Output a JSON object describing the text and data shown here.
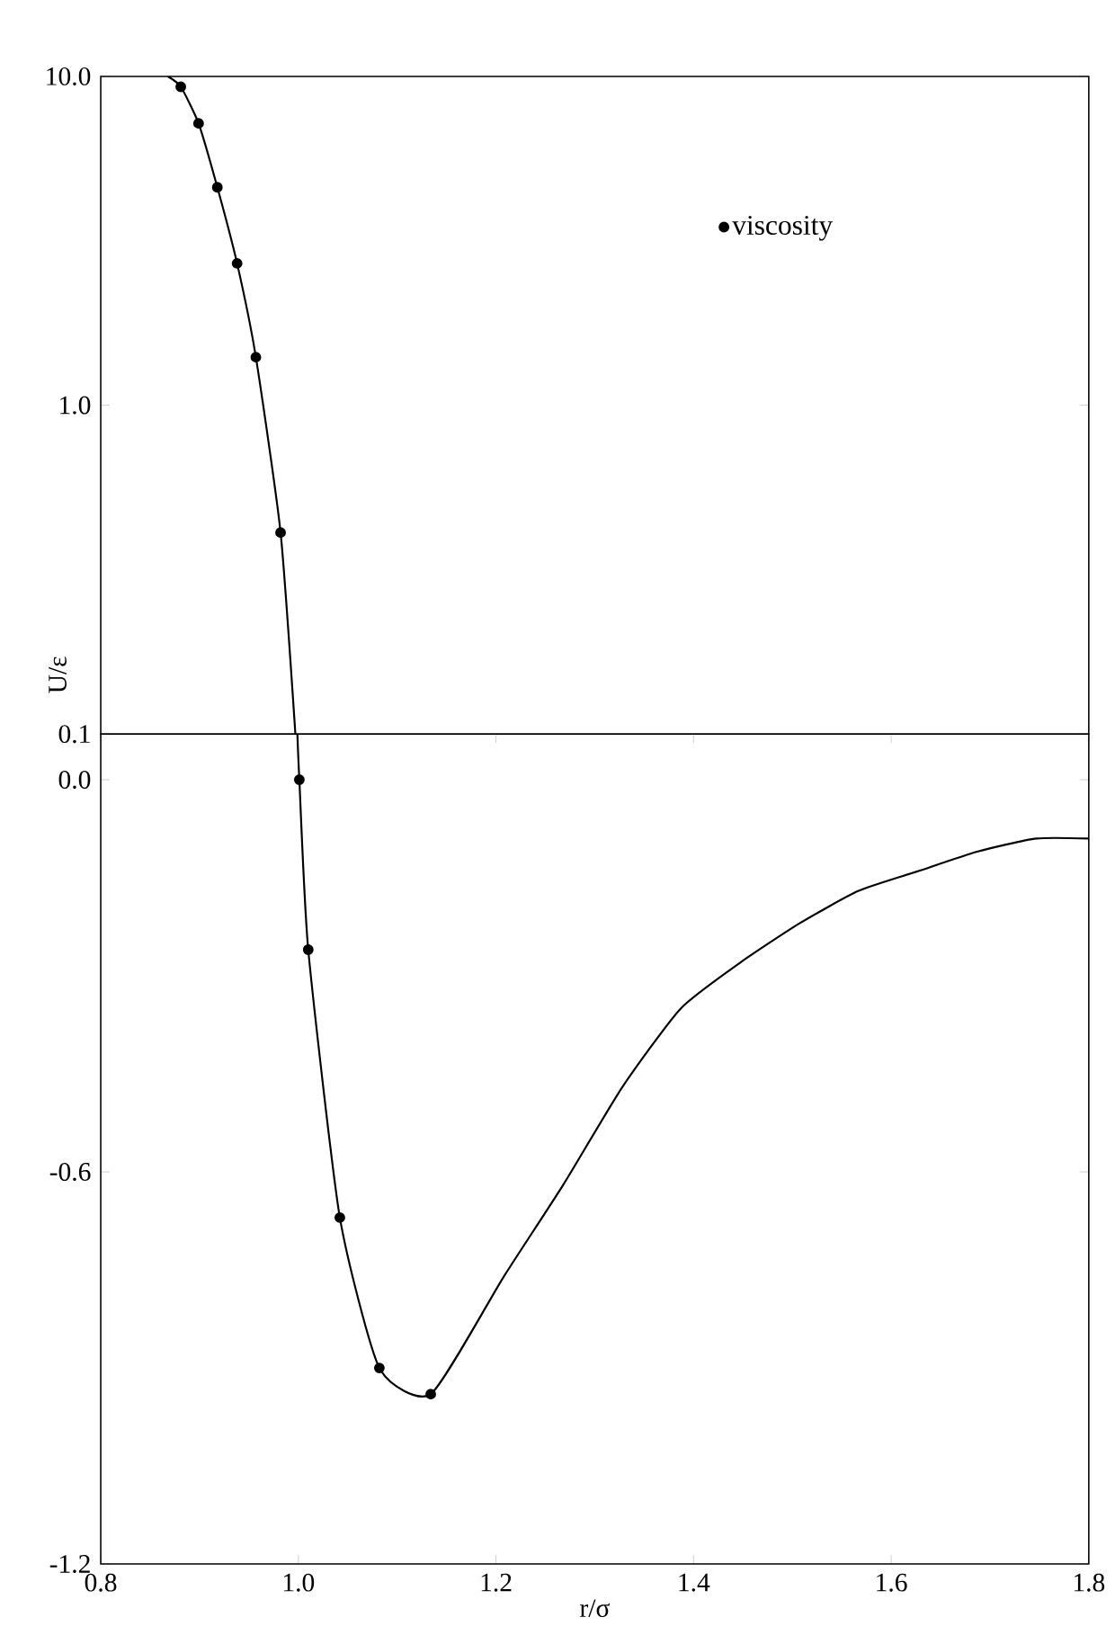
{
  "chart_data": [
    {
      "type": "line",
      "log": "y",
      "xlim": [
        0.8,
        1.8
      ],
      "ylim": [
        0.1,
        10
      ],
      "yticks": [
        {
          "value": 0.1,
          "label": "0.1"
        },
        {
          "value": 1,
          "label": "1.0"
        },
        {
          "value": 10,
          "label": "10.0"
        }
      ],
      "tick_labels": "y",
      "ylabel": "U/ε",
      "legend": "top right",
      "series": [
        {
          "color": "#000000",
          "marker": "none",
          "x": [
            0.868,
            0.881,
            0.899,
            0.918,
            0.938,
            0.957,
            0.982,
            0.997
          ],
          "values": [
            10,
            9.3,
            7.2,
            4.6,
            2.7,
            1.4,
            0.41,
            0.1
          ]
        },
        {
          "type": "scatter",
          "name": "viscosity",
          "color": "#000000",
          "marker": "circle",
          "x": [
            0.881,
            0.899,
            0.918,
            0.938,
            0.957,
            0.982
          ],
          "values": [
            9.3,
            7.2,
            4.6,
            2.7,
            1.4,
            0.41
          ]
        }
      ]
    },
    {
      "type": "line",
      "xlim": [
        0.8,
        1.8
      ],
      "xticks": [
        {
          "value": 0.8,
          "label": "0.8"
        },
        {
          "value": 1.0,
          "label": "1.0"
        },
        {
          "value": 1.2,
          "label": "1.2"
        },
        {
          "value": 1.4,
          "label": "1.4"
        },
        {
          "value": 1.6,
          "label": "1.6"
        },
        {
          "value": 1.8,
          "label": "1.8"
        }
      ],
      "ylim": [
        -1.2,
        0.07
      ],
      "yticks": [
        {
          "value": -1.2,
          "label": "-1.2"
        },
        {
          "value": -0.6,
          "label": "-0.6"
        },
        {
          "value": 0,
          "label": "0.0"
        }
      ],
      "xlabel": "r/σ",
      "series": [
        {
          "color": "#000000",
          "marker": "none",
          "x": [
            0.999,
            1.001,
            1.01,
            1.042,
            1.082,
            1.134,
            1.208,
            1.268,
            1.328,
            1.387,
            1.447,
            1.507,
            1.567,
            1.627,
            1.687,
            1.747,
            1.8
          ],
          "values": [
            0.07,
            0,
            -0.26,
            -0.67,
            -0.9,
            -0.94,
            -0.76,
            -0.62,
            -0.47,
            -0.35,
            -0.28,
            -0.22,
            -0.17,
            -0.14,
            -0.11,
            -0.09,
            -0.09
          ]
        },
        {
          "type": "scatter",
          "color": "#000000",
          "marker": "circle",
          "x": [
            1.001,
            1.01,
            1.042,
            1.082,
            1.134
          ],
          "values": [
            0,
            -0.26,
            -0.67,
            -0.9,
            -0.94
          ]
        }
      ]
    }
  ]
}
